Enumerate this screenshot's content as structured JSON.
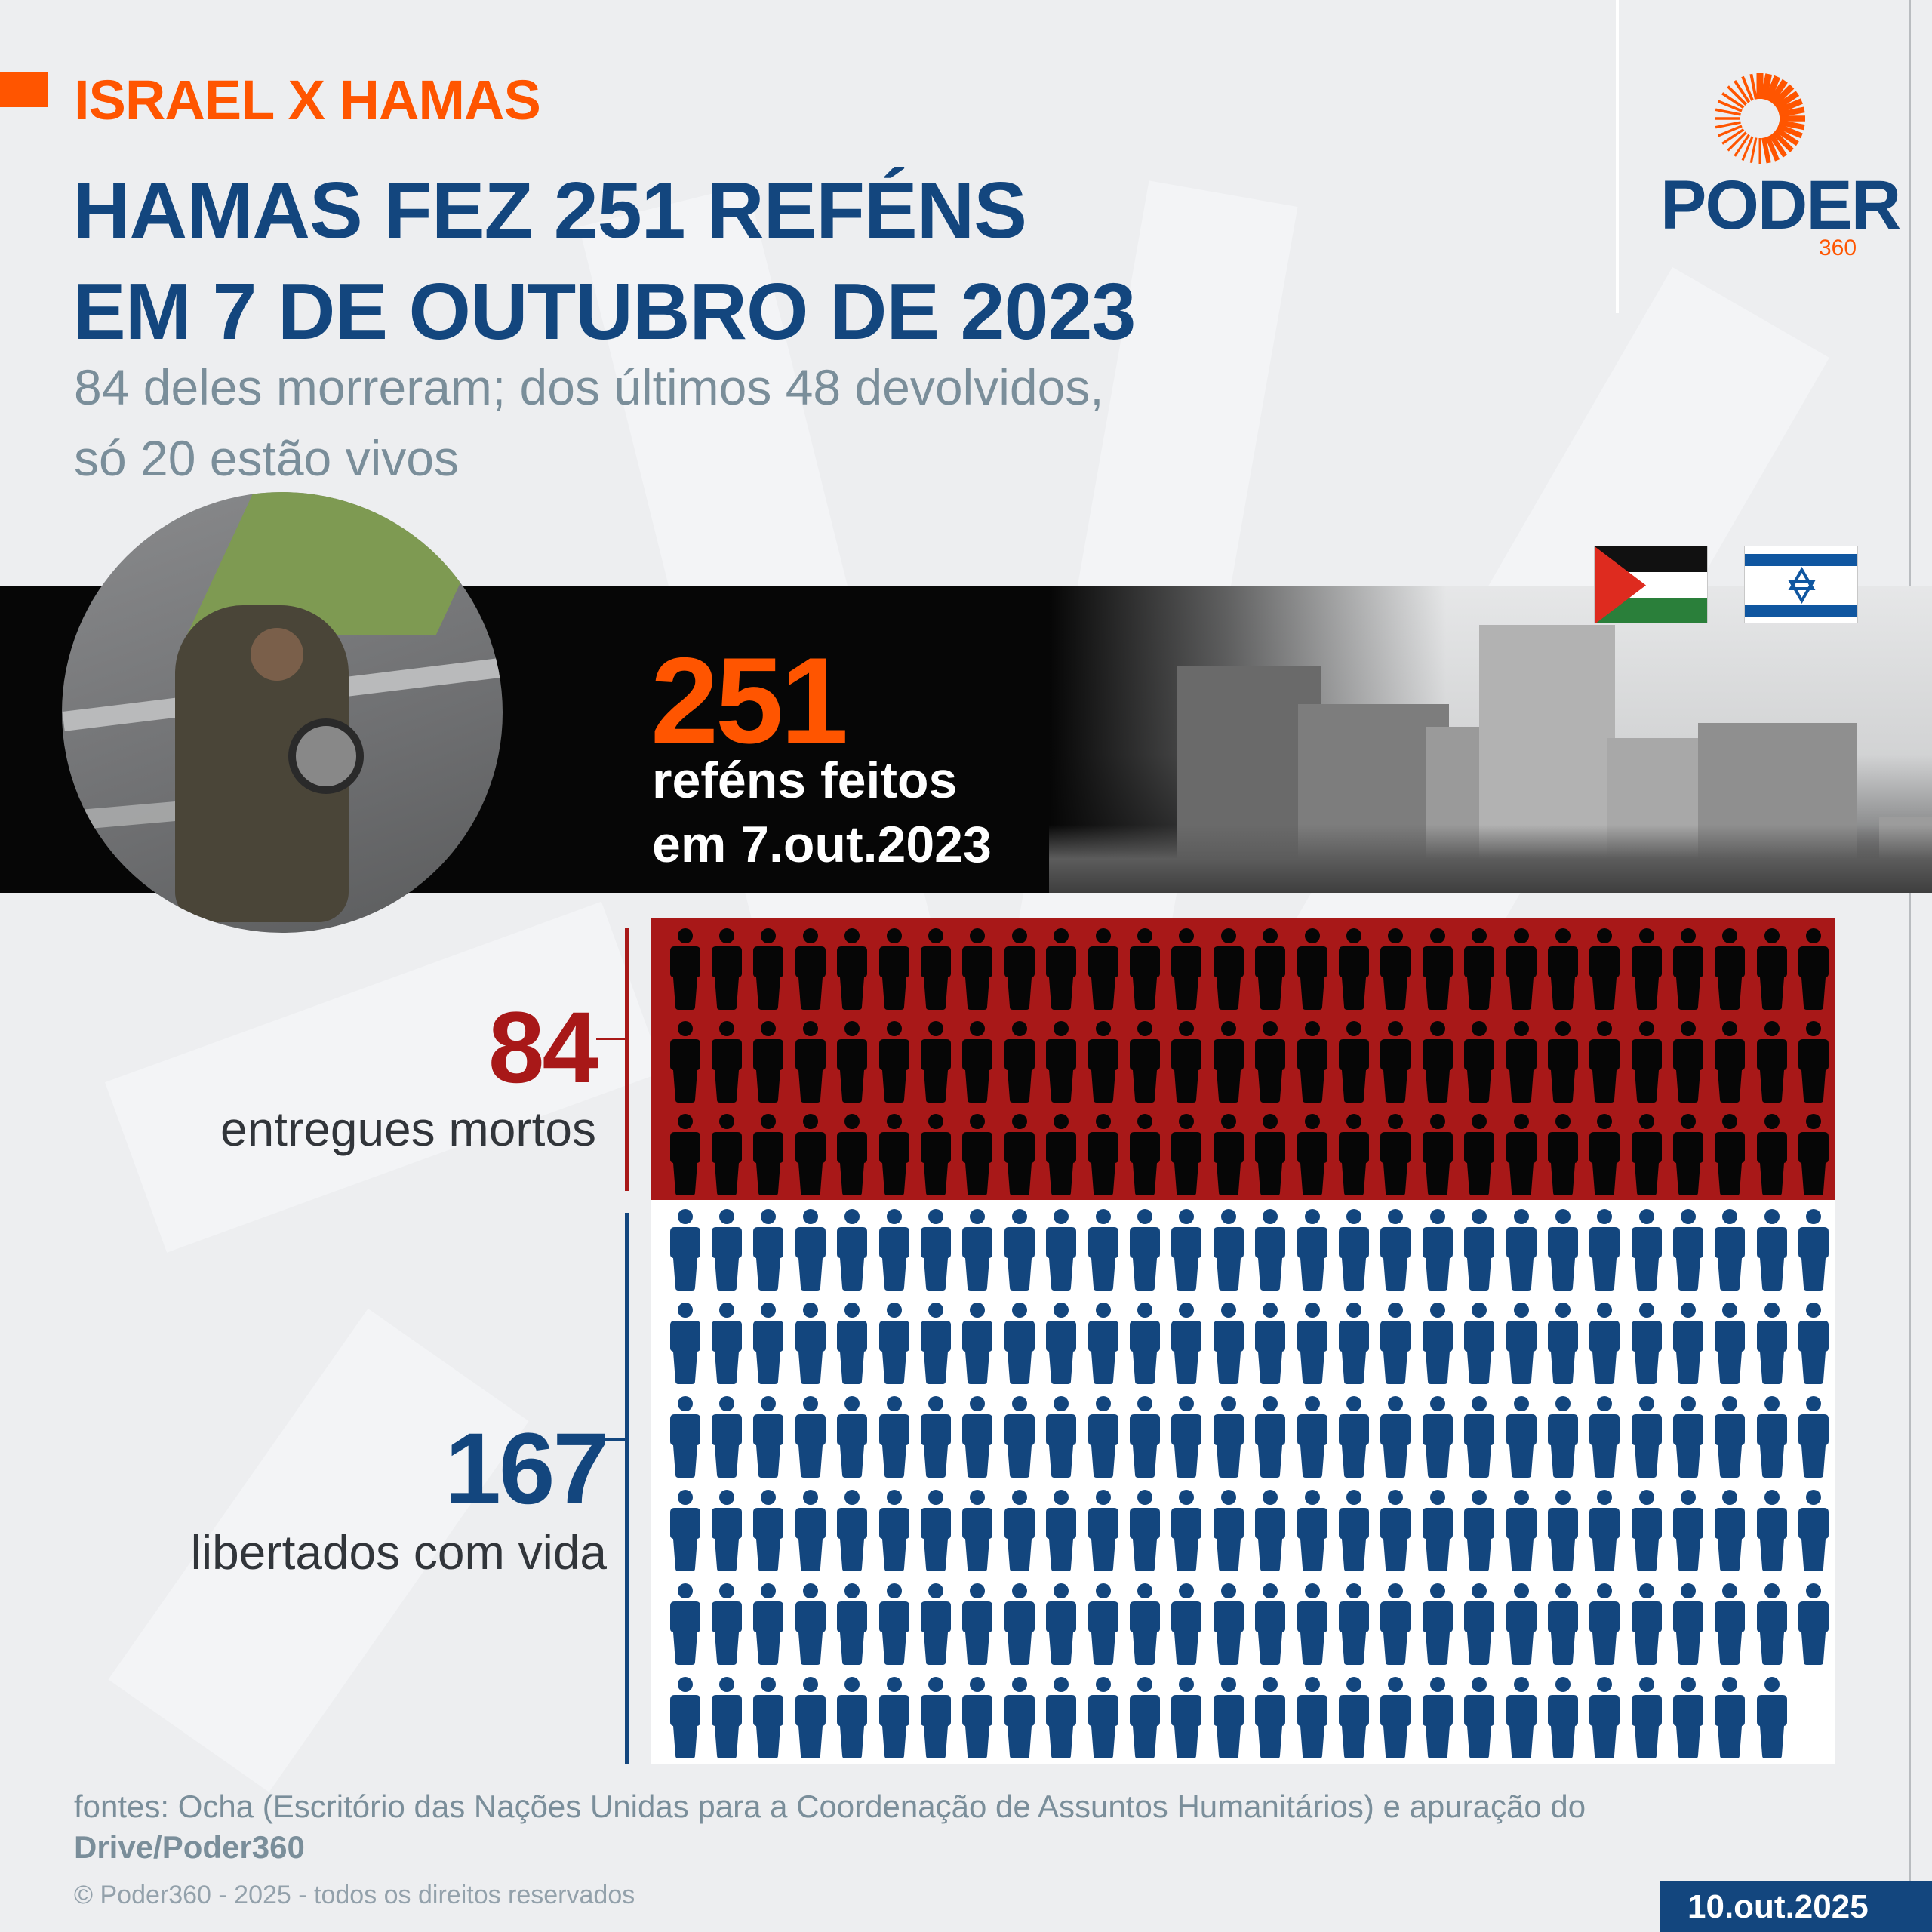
{
  "header": {
    "kicker": "ISRAEL X HAMAS",
    "title_lines": [
      "HAMAS FEZ 251 REFÉNS",
      "EM 7 DE OUTUBRO DE 2023"
    ],
    "subtitle_lines": [
      "84 deles morreram; dos últimos 48 devolvidos,",
      "só 20 estão vivos"
    ]
  },
  "logo": {
    "word": "PODER",
    "suffix": "360",
    "icon": "sun-burst-icon"
  },
  "flags": [
    {
      "name": "palestine-flag",
      "colors": [
        "#111111",
        "#ffffff",
        "#2a7f3a",
        "#de2b1f"
      ]
    },
    {
      "name": "israel-flag",
      "colors": [
        "#ffffff",
        "#0f56a0"
      ]
    }
  ],
  "banner": {
    "number": "251",
    "line1": "reféns feitos",
    "line2": "em 7.out.2023"
  },
  "chart_data": {
    "type": "table",
    "title": "HAMAS FEZ 251 REFÉNS EM 7 DE OUTUBRO DE 2023",
    "total": 251,
    "icons_per_row": 28,
    "categories": [
      "entregues mortos",
      "libertados com vida"
    ],
    "values": [
      84,
      167
    ],
    "colors": {
      "dead_background": "#a81818",
      "dead_icon": "#060606",
      "alive_background": "#ffffff",
      "alive_icon": "#13467e"
    }
  },
  "labels": {
    "dead": {
      "number": "84",
      "text": "entregues mortos",
      "color": "#a81818"
    },
    "alive": {
      "number": "167",
      "text": "libertados com vida",
      "color": "#13467e"
    }
  },
  "footer": {
    "sources_prefix": "fontes: Ocha (Escritório das Nações Unidas para a Coordenação de Assuntos Humanitários) e apuração do",
    "sources_bold": "Drive/Poder360",
    "copyright": "© Poder360 - 2025 - todos os direitos reservados",
    "date": "10.out.2025"
  },
  "colors": {
    "accent_orange": "#ff5500",
    "brand_blue": "#13467e",
    "background": "#edeef0"
  }
}
